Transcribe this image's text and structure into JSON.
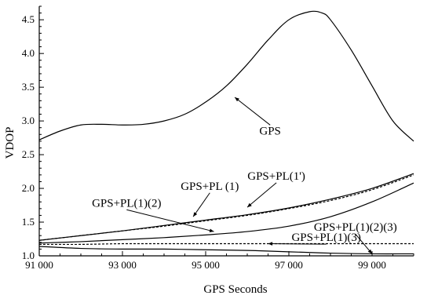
{
  "chart_data": {
    "type": "line",
    "title": "",
    "xlabel": "GPS Seconds",
    "ylabel": "VDOP",
    "xlim": [
      91000,
      100000
    ],
    "ylim": [
      1.0,
      4.7
    ],
    "x_ticks": [
      91000,
      93000,
      95000,
      97000,
      99000
    ],
    "x_tick_labels": [
      "91 000",
      "93 000",
      "95 000",
      "97 000",
      "99 000"
    ],
    "y_ticks": [
      1.0,
      1.5,
      2.0,
      2.5,
      3.0,
      3.5,
      4.0,
      4.5
    ],
    "y_tick_labels": [
      "1.0",
      "1.5",
      "2.0",
      "2.5",
      "3.0",
      "3.5",
      "4.0",
      "4.5"
    ],
    "grid": false,
    "legend": "none (series labeled by annotations with leader lines)",
    "series": [
      {
        "name": "GPS",
        "style": "solid",
        "x": [
          91000,
          91500,
          92000,
          92500,
          93000,
          93500,
          94000,
          94500,
          95000,
          95500,
          96000,
          96500,
          97000,
          97500,
          97800,
          98000,
          98500,
          99000,
          99500,
          100000
        ],
        "y": [
          2.72,
          2.85,
          2.94,
          2.95,
          2.94,
          2.95,
          3.0,
          3.1,
          3.28,
          3.52,
          3.84,
          4.2,
          4.5,
          4.62,
          4.6,
          4.5,
          4.05,
          3.52,
          3.0,
          2.7
        ]
      },
      {
        "name": "GPS+PL(1')",
        "style": "dashed",
        "x": [
          91000,
          92000,
          93000,
          94000,
          95000,
          96000,
          97000,
          98000,
          99000,
          100000
        ],
        "y": [
          1.23,
          1.3,
          1.37,
          1.44,
          1.52,
          1.6,
          1.7,
          1.82,
          1.98,
          2.2
        ]
      },
      {
        "name": "GPS+PL (1)",
        "style": "solid",
        "x": [
          91000,
          92000,
          93000,
          94000,
          95000,
          96000,
          97000,
          98000,
          99000,
          100000
        ],
        "y": [
          1.23,
          1.3,
          1.37,
          1.45,
          1.53,
          1.61,
          1.71,
          1.84,
          2.0,
          2.22
        ]
      },
      {
        "name": "GPS+PL(1)(2)",
        "style": "solid",
        "x": [
          91000,
          92000,
          93000,
          94000,
          95000,
          96000,
          97000,
          98000,
          99000,
          100000
        ],
        "y": [
          1.19,
          1.21,
          1.24,
          1.27,
          1.31,
          1.36,
          1.44,
          1.58,
          1.8,
          2.08
        ]
      },
      {
        "name": "GPS+PL(1)(3)",
        "style": "dashed",
        "x": [
          91000,
          92000,
          93000,
          94000,
          95000,
          96000,
          97000,
          98000,
          99000,
          100000
        ],
        "y": [
          1.17,
          1.17,
          1.18,
          1.18,
          1.18,
          1.18,
          1.18,
          1.18,
          1.18,
          1.18
        ]
      },
      {
        "name": "GPS+PL(1)(2)(3)",
        "style": "solid",
        "x": [
          91000,
          92000,
          93000,
          94000,
          95000,
          96000,
          97000,
          98000,
          99000,
          100000
        ],
        "y": [
          1.14,
          1.11,
          1.1,
          1.1,
          1.09,
          1.08,
          1.06,
          1.04,
          1.03,
          1.03
        ]
      }
    ],
    "annotations": [
      {
        "text": "GPS",
        "x": 96550,
        "y": 2.8,
        "target_x": 95700,
        "target_y": 3.35
      },
      {
        "text": "GPS+PL(1')",
        "x": 96700,
        "y": 2.13,
        "target_x": 96000,
        "target_y": 1.72
      },
      {
        "text": "GPS+PL (1)",
        "x": 95100,
        "y": 1.98,
        "target_x": 94700,
        "target_y": 1.58
      },
      {
        "text": "GPS+PL(1)(2)",
        "x": 93100,
        "y": 1.73,
        "target_x": 95200,
        "target_y": 1.36
      },
      {
        "text": "GPS+PL(1)(2)(3)",
        "x": 98600,
        "y": 1.37,
        "target_x": 99000,
        "target_y": 1.03
      },
      {
        "text": "GPS+PL(1)(3)",
        "x": 97900,
        "y": 1.22,
        "target_x": 96500,
        "target_y": 1.18
      }
    ]
  }
}
